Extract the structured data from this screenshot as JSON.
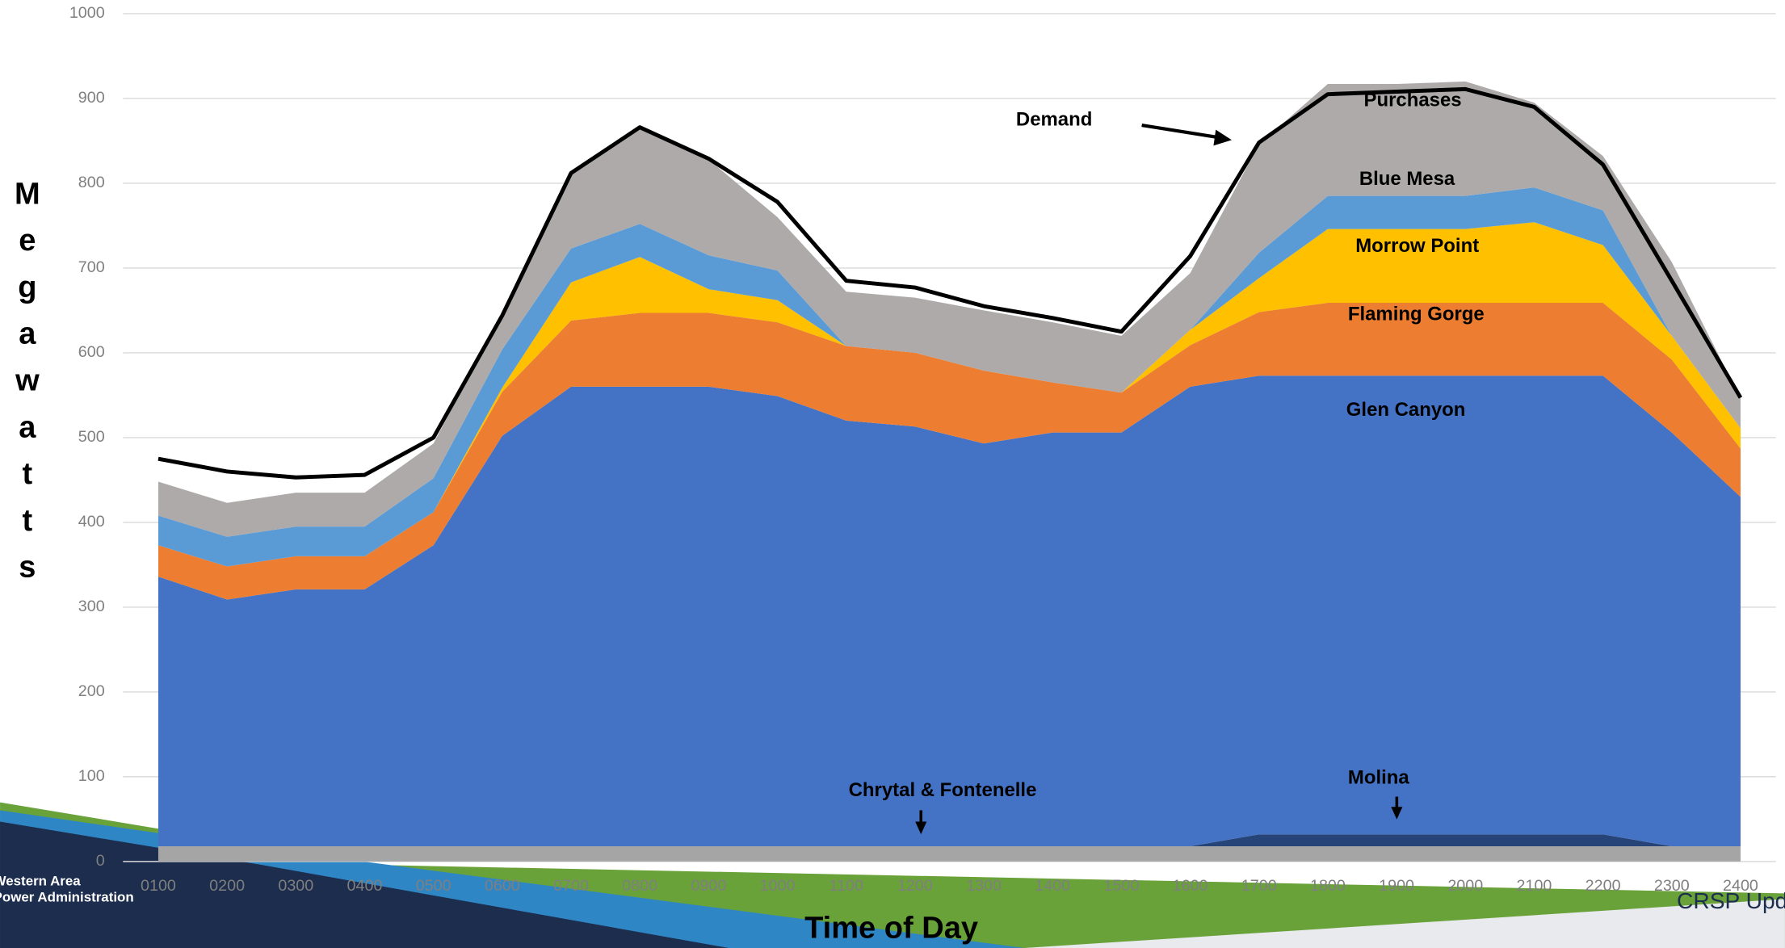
{
  "chart_data": {
    "type": "stacked-area",
    "x_label": "Time of Day",
    "y_label": "Megawatts",
    "categories": [
      "0100",
      "0200",
      "0300",
      "0400",
      "0500",
      "0600",
      "0700",
      "0800",
      "0900",
      "1000",
      "1100",
      "1200",
      "1300",
      "1400",
      "1500",
      "1600",
      "1700",
      "1800",
      "1900",
      "2000",
      "2100",
      "2200",
      "2300",
      "2400"
    ],
    "series": [
      {
        "name": "Chrytal & Fontenelle",
        "color": "#a5a5a5",
        "values": [
          18,
          18,
          18,
          18,
          18,
          18,
          18,
          18,
          18,
          18,
          18,
          18,
          18,
          18,
          18,
          18,
          18,
          18,
          18,
          18,
          18,
          18,
          18,
          18
        ]
      },
      {
        "name": "Molina",
        "color": "#264478",
        "values": [
          0,
          0,
          0,
          0,
          0,
          0,
          0,
          0,
          0,
          0,
          0,
          0,
          0,
          0,
          0,
          0,
          14,
          14,
          14,
          14,
          14,
          14,
          0,
          0
        ]
      },
      {
        "name": "Glen Canyon",
        "color": "#4472c4",
        "values": [
          318,
          291,
          303,
          303,
          355,
          484,
          542,
          542,
          542,
          531,
          502,
          495,
          475,
          488,
          488,
          542,
          541,
          541,
          541,
          541,
          541,
          541,
          488,
          412
        ]
      },
      {
        "name": "Flaming Gorge",
        "color": "#ed7d31",
        "values": [
          37,
          39,
          39,
          39,
          39,
          52,
          78,
          87,
          87,
          87,
          88,
          87,
          86,
          59,
          47,
          49,
          75,
          86,
          86,
          86,
          86,
          86,
          86,
          57
        ]
      },
      {
        "name": "Morrow Point",
        "color": "#ffc000",
        "values": [
          0,
          0,
          0,
          0,
          0,
          5,
          45,
          66,
          28,
          26,
          0,
          0,
          0,
          0,
          0,
          18,
          40,
          87,
          87,
          87,
          95,
          68,
          28,
          24
        ]
      },
      {
        "name": "Blue Mesa",
        "color": "#5b9bd5",
        "values": [
          35,
          35,
          35,
          35,
          40,
          45,
          40,
          39,
          40,
          35,
          0,
          0,
          0,
          0,
          0,
          0,
          30,
          39,
          39,
          39,
          41,
          41,
          0,
          0
        ]
      },
      {
        "name": "Purchases",
        "color": "#aeaaaa",
        "values": [
          40,
          40,
          40,
          40,
          41,
          43,
          89,
          114,
          113,
          63,
          64,
          65,
          71,
          71,
          67,
          67,
          128,
          132,
          132,
          135,
          100,
          64,
          87,
          35
        ]
      }
    ],
    "demand": {
      "name": "Demand",
      "color": "#000000",
      "values": [
        475,
        460,
        453,
        456,
        500,
        644,
        812,
        866,
        829,
        778,
        685,
        677,
        655,
        641,
        625,
        714,
        848,
        905,
        908,
        911,
        890,
        822,
        685,
        547
      ]
    },
    "ylim": [
      0,
      1000
    ],
    "yticks": [
      0,
      100,
      200,
      300,
      400,
      500,
      600,
      700,
      800,
      900,
      1000
    ],
    "grid": true,
    "footer": {
      "org_line1": "Western Area",
      "org_line2": "Power Administration",
      "right": "CRSP Update"
    }
  }
}
